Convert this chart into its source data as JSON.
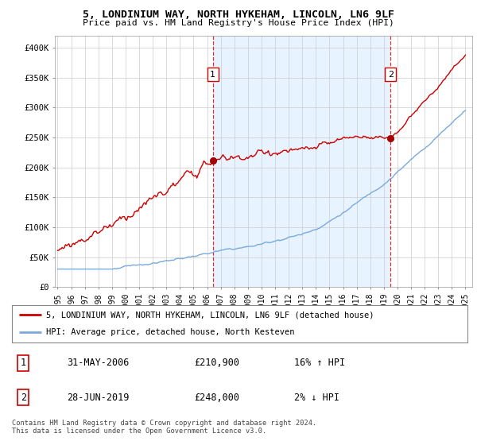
{
  "title": "5, LONDINIUM WAY, NORTH HYKEHAM, LINCOLN, LN6 9LF",
  "subtitle": "Price paid vs. HM Land Registry's House Price Index (HPI)",
  "ylabel_ticks": [
    "£0",
    "£50K",
    "£100K",
    "£150K",
    "£200K",
    "£250K",
    "£300K",
    "£350K",
    "£400K"
  ],
  "ytick_values": [
    0,
    50000,
    100000,
    150000,
    200000,
    250000,
    300000,
    350000,
    400000
  ],
  "ylim": [
    0,
    420000
  ],
  "xlim_start": 1994.8,
  "xlim_end": 2025.5,
  "hpi_color": "#7aaadd",
  "hpi_fill_color": "#ddeeff",
  "price_color": "#cc0000",
  "marker1_x": 2006.42,
  "marker1_y": 210900,
  "marker2_x": 2019.49,
  "marker2_y": 248000,
  "legend_line1": "5, LONDINIUM WAY, NORTH HYKEHAM, LINCOLN, LN6 9LF (detached house)",
  "legend_line2": "HPI: Average price, detached house, North Kesteven",
  "table_row1_num": "1",
  "table_row1_date": "31-MAY-2006",
  "table_row1_price": "£210,900",
  "table_row1_hpi": "16% ↑ HPI",
  "table_row2_num": "2",
  "table_row2_date": "28-JUN-2019",
  "table_row2_price": "£248,000",
  "table_row2_hpi": "2% ↓ HPI",
  "footnote": "Contains HM Land Registry data © Crown copyright and database right 2024.\nThis data is licensed under the Open Government Licence v3.0.",
  "background_color": "#ffffff",
  "xtick_years": [
    1995,
    1996,
    1997,
    1998,
    1999,
    2000,
    2001,
    2002,
    2003,
    2004,
    2005,
    2006,
    2007,
    2008,
    2009,
    2010,
    2011,
    2012,
    2013,
    2014,
    2015,
    2016,
    2017,
    2018,
    2019,
    2020,
    2021,
    2022,
    2023,
    2024,
    2025
  ]
}
